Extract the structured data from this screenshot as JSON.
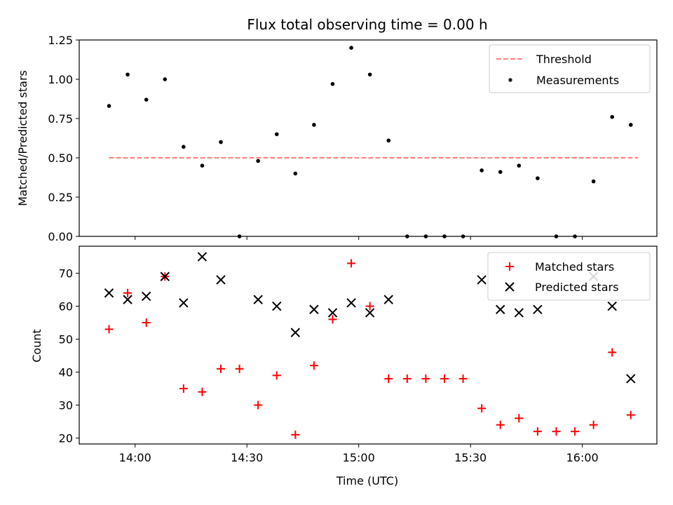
{
  "chart_data": [
    {
      "type": "scatter",
      "title": "Flux total observing time = 0.00 h",
      "xlabel": "",
      "ylabel": "Matched/Predicted stars",
      "ylim": [
        0,
        1.25
      ],
      "yticks": [
        "0.00",
        "0.25",
        "0.50",
        "0.75",
        "1.00",
        "1.25"
      ],
      "grid": false,
      "legend_position": "top-right",
      "series": [
        {
          "name": "Threshold",
          "kind": "dashed-line",
          "color": "#ff7f7f",
          "x": [
            "13:53",
            "16:15"
          ],
          "values": [
            0.5,
            0.5
          ]
        },
        {
          "name": "Measurements",
          "kind": "dot",
          "color": "#000000",
          "x": [
            "13:53",
            "13:58",
            "14:03",
            "14:08",
            "14:13",
            "14:18",
            "14:23",
            "14:28",
            "14:33",
            "14:38",
            "14:43",
            "14:48",
            "14:53",
            "14:58",
            "15:03",
            "15:08",
            "15:13",
            "15:18",
            "15:23",
            "15:28",
            "15:33",
            "15:38",
            "15:43",
            "15:48",
            "15:53",
            "15:58",
            "16:03",
            "16:08",
            "16:13"
          ],
          "values": [
            0.83,
            1.03,
            0.87,
            1.0,
            0.57,
            0.45,
            0.6,
            0.0,
            0.48,
            0.65,
            0.4,
            0.71,
            0.97,
            1.2,
            1.03,
            0.61,
            0.0,
            0.0,
            0.0,
            0.0,
            0.42,
            0.41,
            0.45,
            0.37,
            0.0,
            0.0,
            0.35,
            0.76,
            0.71
          ]
        }
      ]
    },
    {
      "type": "scatter",
      "title": "",
      "xlabel": "Time (UTC)",
      "ylabel": "Count",
      "ylim": [
        18.2,
        78.2
      ],
      "yticks": [
        "20",
        "30",
        "40",
        "50",
        "60",
        "70"
      ],
      "xticks": [
        "14:00",
        "14:30",
        "15:00",
        "15:30",
        "16:00"
      ],
      "xlim": [
        "13:45",
        "16:20"
      ],
      "grid": false,
      "legend_position": "top-right",
      "series": [
        {
          "name": "Matched stars",
          "kind": "plus",
          "color": "#ff0000",
          "x": [
            "13:53",
            "13:58",
            "14:03",
            "14:08",
            "14:13",
            "14:18",
            "14:23",
            "14:28",
            "14:33",
            "14:38",
            "14:43",
            "14:48",
            "14:53",
            "14:58",
            "15:03",
            "15:08",
            "15:13",
            "15:18",
            "15:23",
            "15:28",
            "15:33",
            "15:38",
            "15:43",
            "15:48",
            "15:53",
            "15:58",
            "16:03",
            "16:08",
            "16:13"
          ],
          "values": [
            53,
            64,
            55,
            69,
            35,
            34,
            41,
            41,
            30,
            39,
            21,
            42,
            56,
            73,
            60,
            38,
            38,
            38,
            38,
            38,
            29,
            24,
            26,
            22,
            22,
            22,
            24,
            46,
            27
          ]
        },
        {
          "name": "Predicted stars",
          "kind": "x",
          "color": "#000000",
          "x": [
            "13:53",
            "13:58",
            "14:03",
            "14:08",
            "14:13",
            "14:18",
            "14:23",
            "14:33",
            "14:38",
            "14:43",
            "14:48",
            "14:53",
            "14:58",
            "15:03",
            "15:08",
            "15:33",
            "15:38",
            "15:43",
            "15:48",
            "16:03",
            "16:08",
            "16:13"
          ],
          "values": [
            64,
            62,
            63,
            69,
            61,
            75,
            68,
            62,
            60,
            52,
            59,
            58,
            61,
            58,
            62,
            68,
            59,
            58,
            59,
            69,
            60,
            38
          ]
        }
      ]
    }
  ]
}
